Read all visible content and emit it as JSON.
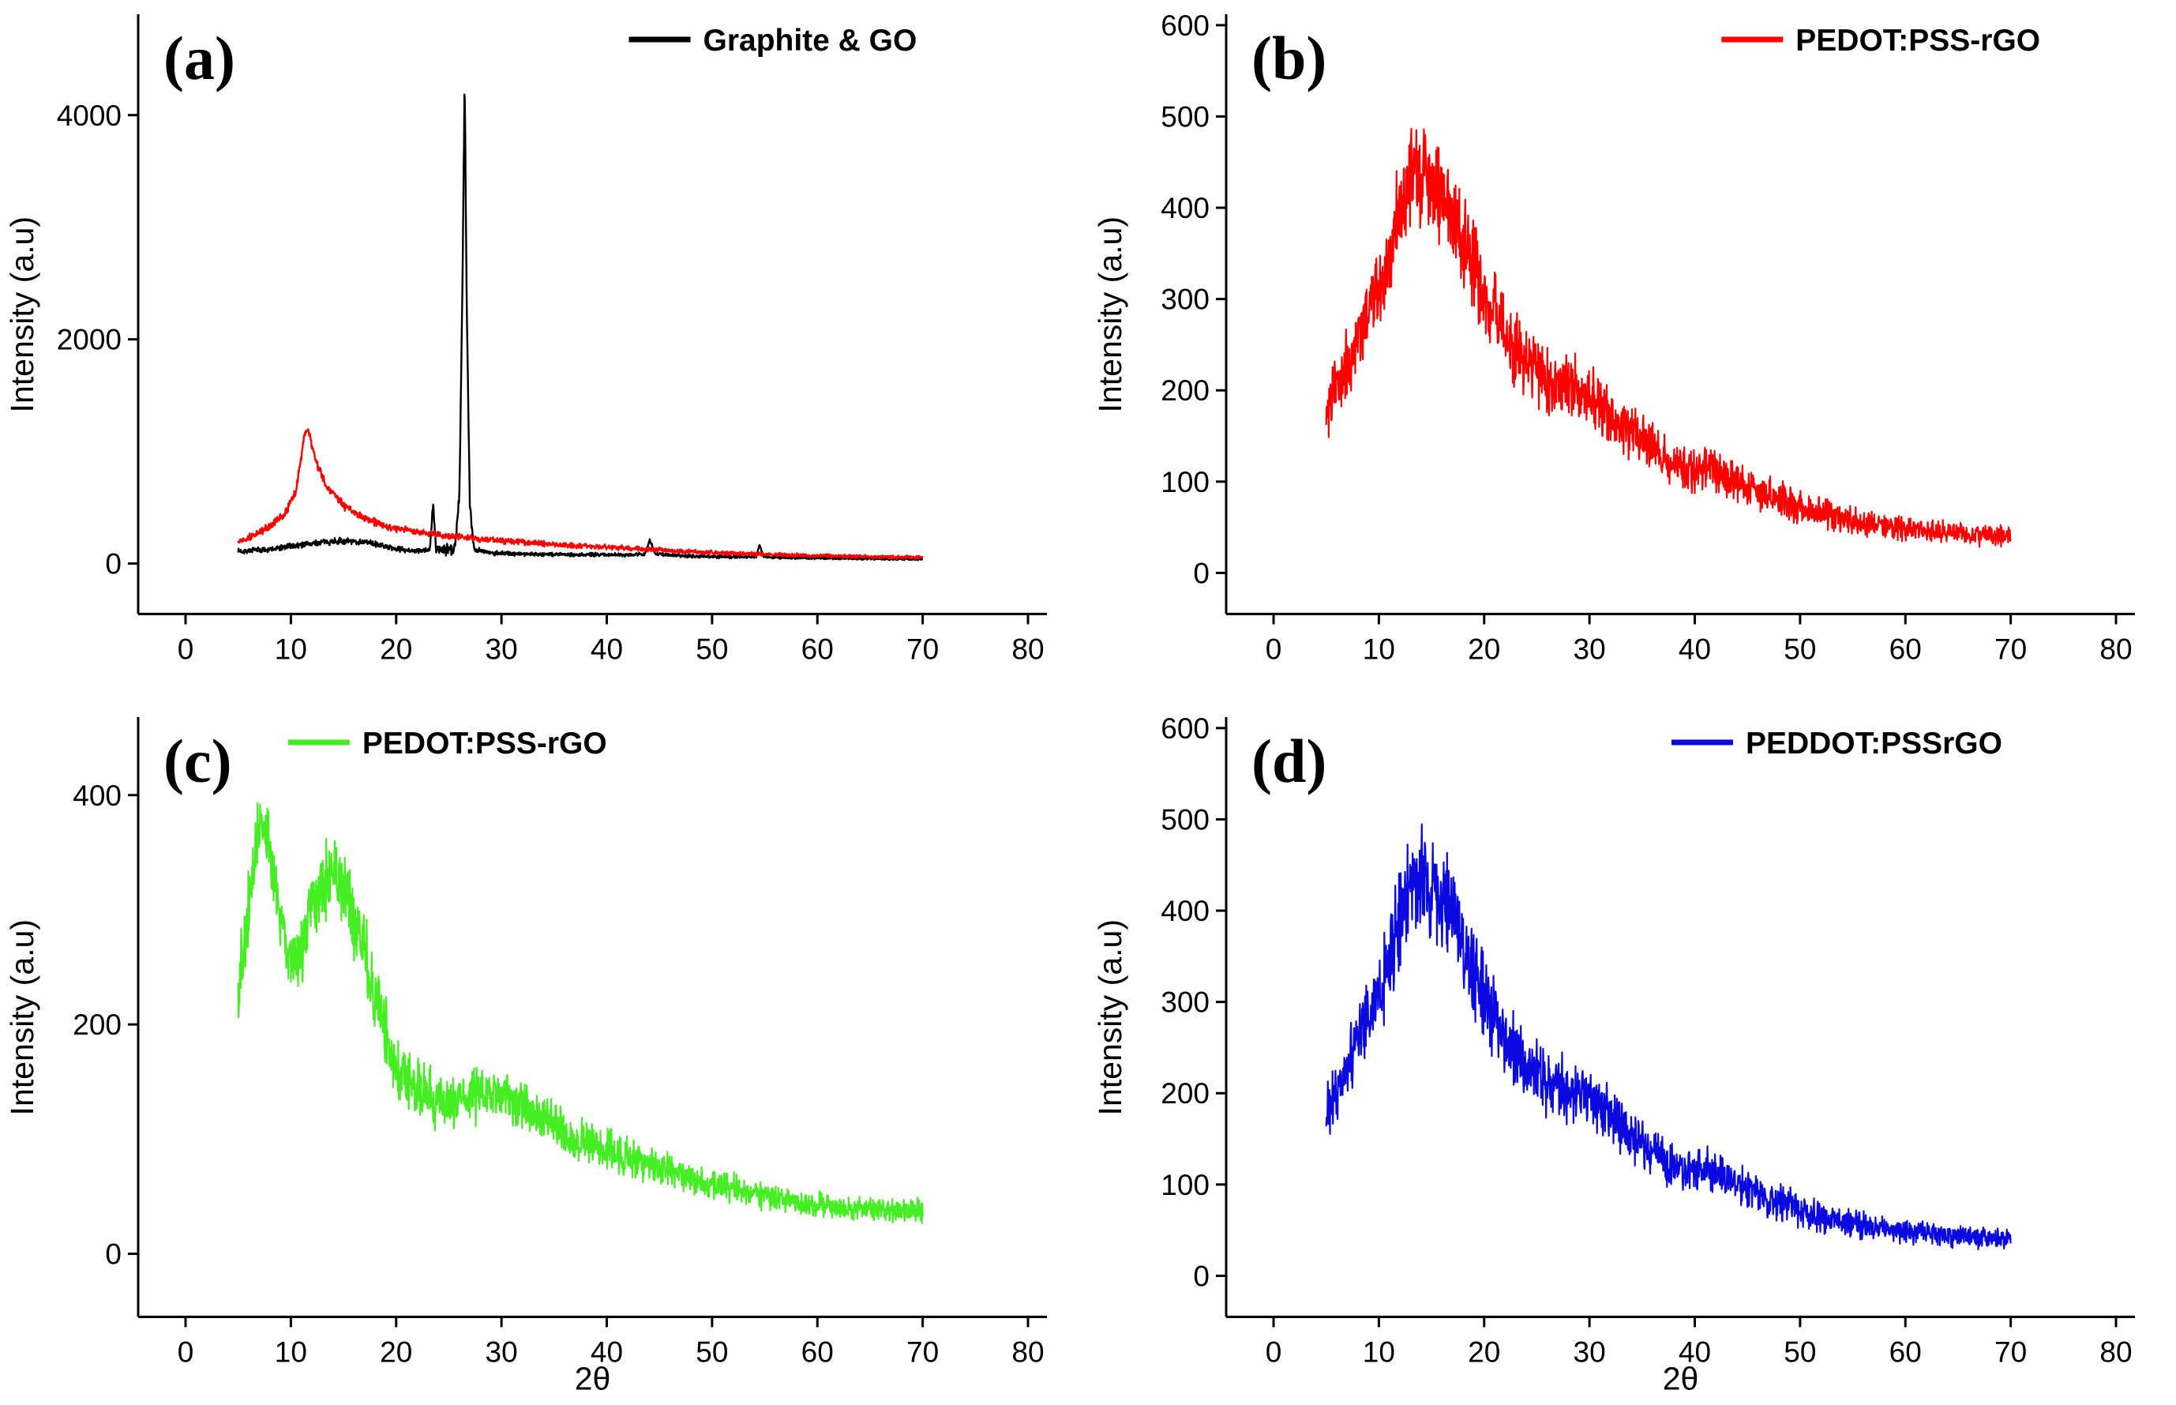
{
  "figure": {
    "background": "#ffffff",
    "description": "XRD patterns, 2x2 panel figure"
  },
  "chart_data": [
    {
      "id": "a",
      "panel_label": "(a)",
      "type": "line",
      "title": "",
      "xlabel": "",
      "ylabel": "Intensity (a.u)",
      "xlim": [
        -4.5,
        81.8
      ],
      "ylim": [
        -450,
        4900
      ],
      "x_ticks": [
        0,
        10,
        20,
        30,
        40,
        50,
        60,
        70,
        80
      ],
      "y_ticks": [
        0,
        2000,
        4000
      ],
      "grid": false,
      "legend_position": "top-center-right",
      "legend": [
        {
          "label": "Graphite & GO",
          "color": "#000000"
        }
      ],
      "series": [
        {
          "name": "Graphite",
          "color": "#000000",
          "width": 2.4,
          "seed": 7,
          "x_start": 5,
          "x_end": 70,
          "x_step": 0.04,
          "mean_anchors": [
            [
              5,
              110
            ],
            [
              8,
              125
            ],
            [
              11,
              170
            ],
            [
              14,
              200
            ],
            [
              17,
              195
            ],
            [
              20,
              130
            ],
            [
              22.5,
              110
            ],
            [
              23.2,
              130
            ],
            [
              23.5,
              520
            ],
            [
              23.8,
              130
            ],
            [
              25.5,
              120
            ],
            [
              26.0,
              600
            ],
            [
              26.3,
              2500
            ],
            [
              26.5,
              4350
            ],
            [
              26.7,
              2300
            ],
            [
              27.0,
              500
            ],
            [
              27.4,
              130
            ],
            [
              29,
              95
            ],
            [
              33,
              85
            ],
            [
              37,
              80
            ],
            [
              42,
              80
            ],
            [
              43.6,
              85
            ],
            [
              44.1,
              210
            ],
            [
              44.6,
              85
            ],
            [
              48,
              65
            ],
            [
              52,
              60
            ],
            [
              54.2,
              60
            ],
            [
              54.5,
              170
            ],
            [
              54.9,
              60
            ],
            [
              58,
              50
            ],
            [
              63,
              45
            ],
            [
              70,
              40
            ]
          ],
          "noise_anchors": [
            [
              5,
              30
            ],
            [
              15,
              35
            ],
            [
              22,
              25
            ],
            [
              26.5,
              80
            ],
            [
              28,
              25
            ],
            [
              40,
              20
            ],
            [
              55,
              15
            ],
            [
              70,
              12
            ]
          ]
        },
        {
          "name": "GO",
          "color": "#ff0000",
          "width": 2.4,
          "seed": 13,
          "x_start": 5,
          "x_end": 70,
          "x_step": 0.04,
          "mean_anchors": [
            [
              5,
              200
            ],
            [
              6.5,
              250
            ],
            [
              8,
              330
            ],
            [
              9.5,
              450
            ],
            [
              10.5,
              650
            ],
            [
              11.2,
              1100
            ],
            [
              11.6,
              1210
            ],
            [
              12.0,
              1050
            ],
            [
              12.6,
              850
            ],
            [
              13.5,
              680
            ],
            [
              15,
              520
            ],
            [
              17,
              400
            ],
            [
              19,
              330
            ],
            [
              22,
              280
            ],
            [
              25,
              245
            ],
            [
              28,
              220
            ],
            [
              32,
              190
            ],
            [
              36,
              165
            ],
            [
              40,
              145
            ],
            [
              44,
              125
            ],
            [
              48,
              105
            ],
            [
              52,
              90
            ],
            [
              56,
              80
            ],
            [
              60,
              70
            ],
            [
              65,
              60
            ],
            [
              70,
              55
            ]
          ],
          "noise_anchors": [
            [
              5,
              35
            ],
            [
              10,
              45
            ],
            [
              11.6,
              55
            ],
            [
              15,
              45
            ],
            [
              25,
              35
            ],
            [
              40,
              28
            ],
            [
              55,
              22
            ],
            [
              70,
              18
            ]
          ]
        }
      ]
    },
    {
      "id": "b",
      "panel_label": "(b)",
      "type": "line",
      "title": "",
      "xlabel": "",
      "ylabel": "Intensity (a.u)",
      "xlim": [
        -4.5,
        81.8
      ],
      "ylim": [
        -45,
        612
      ],
      "x_ticks": [
        0,
        10,
        20,
        30,
        40,
        50,
        60,
        70,
        80
      ],
      "y_ticks": [
        0,
        100,
        200,
        300,
        400,
        500,
        600
      ],
      "grid": false,
      "legend_position": "top-center-right",
      "legend": [
        {
          "label": "PEDOT:PSS-rGO",
          "color": "#ff0000"
        }
      ],
      "series": [
        {
          "name": "PEDOT:PSS-rGO",
          "color": "#ff0000",
          "width": 2.2,
          "seed": 23,
          "x_start": 5,
          "x_end": 70,
          "x_step": 0.04,
          "mean_anchors": [
            [
              5,
              175
            ],
            [
              6,
              205
            ],
            [
              7.5,
              245
            ],
            [
              9,
              285
            ],
            [
              10.5,
              330
            ],
            [
              12,
              395
            ],
            [
              13,
              430
            ],
            [
              14,
              440
            ],
            [
              15,
              430
            ],
            [
              16,
              415
            ],
            [
              17,
              395
            ],
            [
              18,
              365
            ],
            [
              19,
              335
            ],
            [
              20,
              305
            ],
            [
              21.5,
              270
            ],
            [
              23,
              245
            ],
            [
              24.5,
              225
            ],
            [
              26,
              210
            ],
            [
              28,
              205
            ],
            [
              30,
              195
            ],
            [
              31.5,
              180
            ],
            [
              33,
              165
            ],
            [
              34.5,
              150
            ],
            [
              36,
              135
            ],
            [
              38,
              120
            ],
            [
              40,
              112
            ],
            [
              41.5,
              118
            ],
            [
              43,
              105
            ],
            [
              45,
              95
            ],
            [
              47,
              85
            ],
            [
              50,
              72
            ],
            [
              53,
              62
            ],
            [
              56,
              55
            ],
            [
              60,
              48
            ],
            [
              64,
              44
            ],
            [
              70,
              40
            ]
          ],
          "noise_anchors": [
            [
              5,
              40
            ],
            [
              8,
              50
            ],
            [
              12,
              65
            ],
            [
              15,
              68
            ],
            [
              18,
              60
            ],
            [
              22,
              48
            ],
            [
              27,
              42
            ],
            [
              32,
              38
            ],
            [
              38,
              30
            ],
            [
              44,
              26
            ],
            [
              50,
              22
            ],
            [
              60,
              16
            ],
            [
              70,
              13
            ]
          ]
        }
      ]
    },
    {
      "id": "c",
      "panel_label": "(c)",
      "type": "line",
      "title": "",
      "xlabel": "2θ",
      "ylabel": "Intensity (a.u)",
      "xlim": [
        -4.5,
        81.8
      ],
      "ylim": [
        -55,
        468
      ],
      "x_ticks": [
        0,
        10,
        20,
        30,
        40,
        50,
        60,
        70,
        80
      ],
      "y_ticks": [
        0,
        200,
        400
      ],
      "grid": false,
      "legend_position": "top-left-center",
      "legend": [
        {
          "label": "PEDOT:PSS-rGO",
          "color": "#44ee22"
        }
      ],
      "series": [
        {
          "name": "PEDOT:PSS-rGO",
          "color": "#44ee22",
          "width": 2.2,
          "seed": 37,
          "x_start": 5,
          "x_end": 70,
          "x_step": 0.04,
          "mean_anchors": [
            [
              5,
              235
            ],
            [
              5.8,
              285
            ],
            [
              6.5,
              340
            ],
            [
              7.2,
              385
            ],
            [
              7.7,
              370
            ],
            [
              8.3,
              330
            ],
            [
              9,
              290
            ],
            [
              10,
              258
            ],
            [
              11,
              268
            ],
            [
              12,
              295
            ],
            [
              13,
              318
            ],
            [
              14,
              328
            ],
            [
              15,
              318
            ],
            [
              16,
              292
            ],
            [
              17,
              262
            ],
            [
              18,
              225
            ],
            [
              19,
              192
            ],
            [
              20,
              165
            ],
            [
              21.5,
              148
            ],
            [
              23,
              138
            ],
            [
              25,
              130
            ],
            [
              27,
              136
            ],
            [
              29,
              142
            ],
            [
              31,
              136
            ],
            [
              33,
              122
            ],
            [
              35,
              112
            ],
            [
              37,
              102
            ],
            [
              39,
              94
            ],
            [
              41,
              88
            ],
            [
              44,
              78
            ],
            [
              47,
              70
            ],
            [
              50,
              62
            ],
            [
              54,
              52
            ],
            [
              58,
              45
            ],
            [
              62,
              40
            ],
            [
              66,
              38
            ],
            [
              70,
              37
            ]
          ],
          "noise_anchors": [
            [
              5,
              40
            ],
            [
              7,
              38
            ],
            [
              9,
              32
            ],
            [
              12,
              42
            ],
            [
              15,
              45
            ],
            [
              18,
              40
            ],
            [
              22,
              28
            ],
            [
              27,
              30
            ],
            [
              31,
              30
            ],
            [
              36,
              24
            ],
            [
              42,
              20
            ],
            [
              50,
              16
            ],
            [
              60,
              13
            ],
            [
              70,
              12
            ]
          ]
        }
      ]
    },
    {
      "id": "d",
      "panel_label": "(d)",
      "type": "line",
      "title": "",
      "xlabel": "2θ",
      "ylabel": "Intensity (a.u)",
      "xlim": [
        -4.5,
        81.8
      ],
      "ylim": [
        -45,
        612
      ],
      "x_ticks": [
        0,
        10,
        20,
        30,
        40,
        50,
        60,
        70,
        80
      ],
      "y_ticks": [
        0,
        100,
        200,
        300,
        400,
        500,
        600
      ],
      "grid": false,
      "legend_position": "top-center-right",
      "legend": [
        {
          "label": "PEDDOT:PSSrGO",
          "color": "#0a0ae0"
        }
      ],
      "series": [
        {
          "name": "PEDDOT:PSSrGO",
          "color": "#0a0ae0",
          "width": 2.2,
          "seed": 51,
          "x_start": 5,
          "x_end": 70,
          "x_step": 0.04,
          "mean_anchors": [
            [
              5,
              175
            ],
            [
              6,
              205
            ],
            [
              7.5,
              245
            ],
            [
              9,
              285
            ],
            [
              10.5,
              330
            ],
            [
              12,
              395
            ],
            [
              13,
              430
            ],
            [
              14,
              440
            ],
            [
              15,
              430
            ],
            [
              16,
              415
            ],
            [
              17,
              395
            ],
            [
              18,
              365
            ],
            [
              19,
              335
            ],
            [
              20,
              305
            ],
            [
              21.5,
              270
            ],
            [
              23,
              245
            ],
            [
              24.5,
              225
            ],
            [
              26,
              210
            ],
            [
              28,
              205
            ],
            [
              30,
              195
            ],
            [
              31.5,
              180
            ],
            [
              33,
              165
            ],
            [
              34.5,
              150
            ],
            [
              36,
              135
            ],
            [
              38,
              120
            ],
            [
              40,
              112
            ],
            [
              41.5,
              118
            ],
            [
              43,
              105
            ],
            [
              45,
              95
            ],
            [
              47,
              85
            ],
            [
              50,
              72
            ],
            [
              53,
              62
            ],
            [
              56,
              55
            ],
            [
              60,
              48
            ],
            [
              64,
              44
            ],
            [
              70,
              40
            ]
          ],
          "noise_anchors": [
            [
              5,
              40
            ],
            [
              8,
              50
            ],
            [
              12,
              65
            ],
            [
              15,
              68
            ],
            [
              18,
              60
            ],
            [
              22,
              48
            ],
            [
              27,
              42
            ],
            [
              32,
              38
            ],
            [
              38,
              30
            ],
            [
              44,
              26
            ],
            [
              50,
              22
            ],
            [
              60,
              16
            ],
            [
              70,
              13
            ]
          ]
        }
      ]
    }
  ]
}
